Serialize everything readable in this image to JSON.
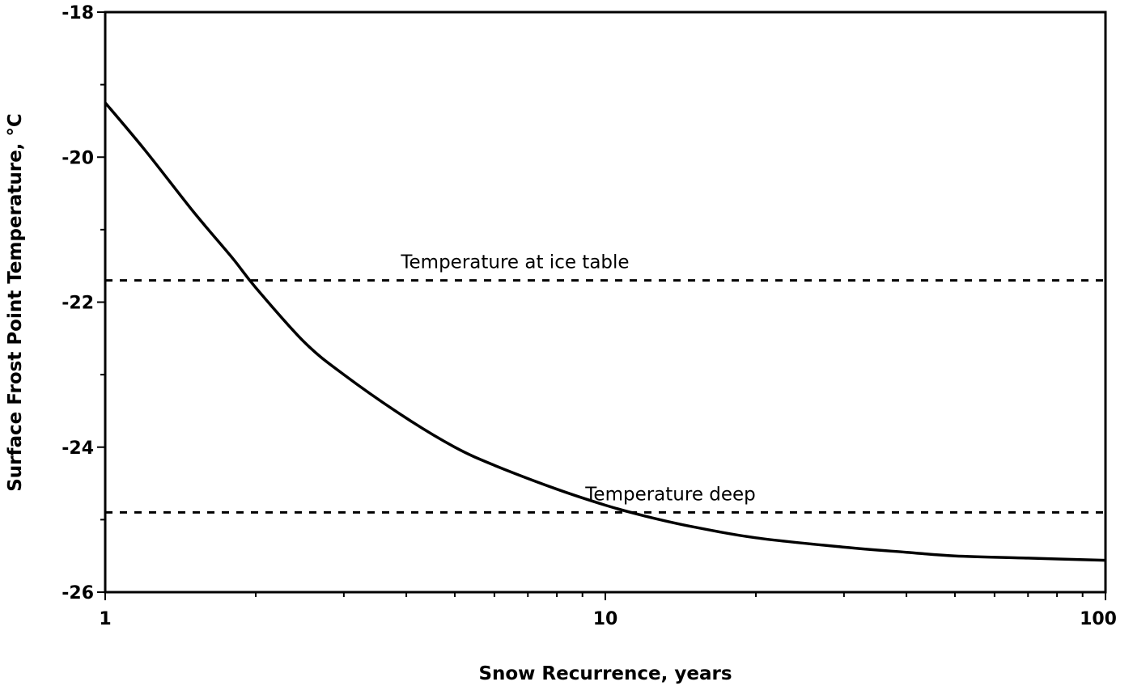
{
  "chart_data": {
    "type": "line",
    "title": "",
    "xlabel": "Snow Recurrence, years",
    "ylabel": "Surface Frost Point Temperature, °C",
    "xscale": "log",
    "xlim": [
      1,
      100
    ],
    "ylim": [
      -26,
      -18
    ],
    "xticks": [
      1,
      10,
      100
    ],
    "xtick_labels": [
      "1",
      "10",
      "100"
    ],
    "yticks": [
      -18,
      -20,
      -22,
      -24,
      -26
    ],
    "ytick_labels": [
      "-18",
      "-20",
      "-22",
      "-24",
      "-26"
    ],
    "grid": false,
    "legend": "none",
    "series": [
      {
        "x": [
          1,
          1.2,
          1.5,
          1.8,
          2,
          2.5,
          3,
          4,
          5,
          6,
          8,
          10,
          12,
          15,
          20,
          30,
          40,
          50,
          70,
          100
        ],
        "y": [
          -19.25,
          -19.9,
          -20.75,
          -21.4,
          -21.8,
          -22.55,
          -23.0,
          -23.6,
          -24.0,
          -24.25,
          -24.58,
          -24.8,
          -24.95,
          -25.1,
          -25.25,
          -25.38,
          -25.45,
          -25.5,
          -25.53,
          -25.56
        ]
      }
    ],
    "reference_lines": [
      {
        "label": "Temperature at ice table",
        "y": -21.7
      },
      {
        "label": "Temperature deep",
        "y": -24.9
      }
    ]
  }
}
